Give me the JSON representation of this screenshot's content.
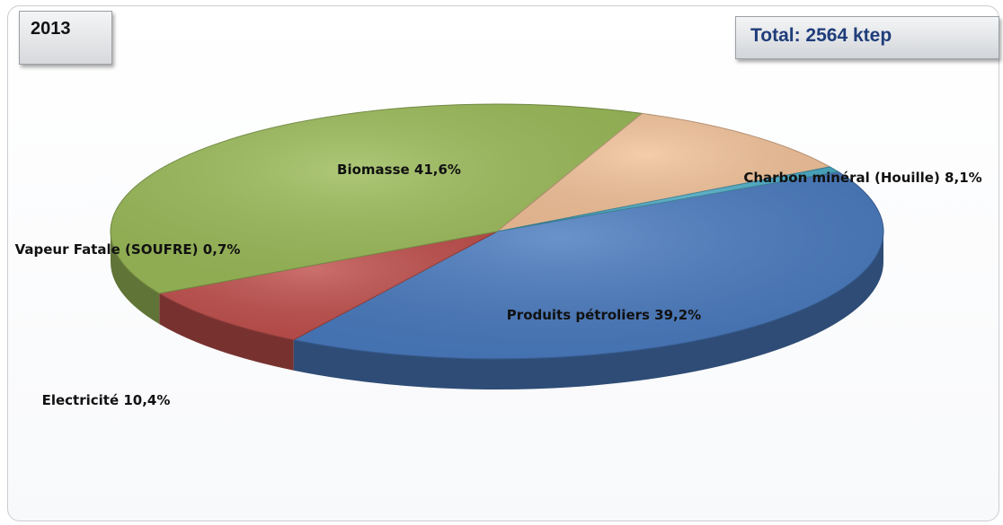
{
  "chart_data": {
    "type": "pie",
    "title": "2013",
    "total_label": "Total: 2564 ktep",
    "slices": [
      {
        "label": "Biomasse 41,6%",
        "value": 41.6,
        "color": "#4a7bbf"
      },
      {
        "label": "Charbon minéral (Houille) 8,1%",
        "value": 8.1,
        "color": "#c0504d"
      },
      {
        "label": "Produits pétroliers 39,2%",
        "value": 39.2,
        "color": "#9bbb59"
      },
      {
        "label": "Electricité 10,4%",
        "value": 10.4,
        "color": "#f2c299"
      },
      {
        "label": "Vapeur Fatale (SOUFRE) 0,7%",
        "value": 0.7,
        "color": "#4bacc6"
      }
    ],
    "legend": "none"
  }
}
